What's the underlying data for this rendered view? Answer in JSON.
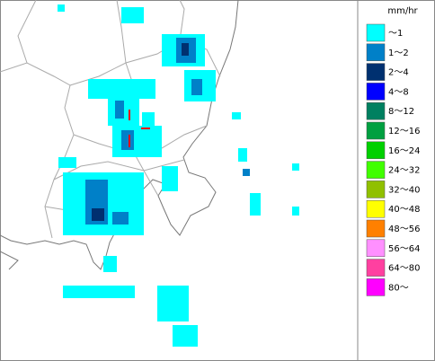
{
  "legend": {
    "unit": "mm/hr",
    "items": [
      {
        "label": "～1",
        "color": "#00ffff"
      },
      {
        "label": "1～2",
        "color": "#0080c8"
      },
      {
        "label": "2～4",
        "color": "#003070"
      },
      {
        "label": "4～8",
        "color": "#0000ff"
      },
      {
        "label": "8～12",
        "color": "#008060"
      },
      {
        "label": "12～16",
        "color": "#00a040"
      },
      {
        "label": "16～24",
        "color": "#00d000"
      },
      {
        "label": "24～32",
        "color": "#40ff00"
      },
      {
        "label": "32～40",
        "color": "#90c000"
      },
      {
        "label": "40～48",
        "color": "#ffff00"
      },
      {
        "label": "48～56",
        "color": "#ff8000"
      },
      {
        "label": "56～64",
        "color": "#ff90ff"
      },
      {
        "label": "64～80",
        "color": "#ff40a0"
      },
      {
        "label": "80～",
        "color": "#ff00ff"
      }
    ]
  }
}
